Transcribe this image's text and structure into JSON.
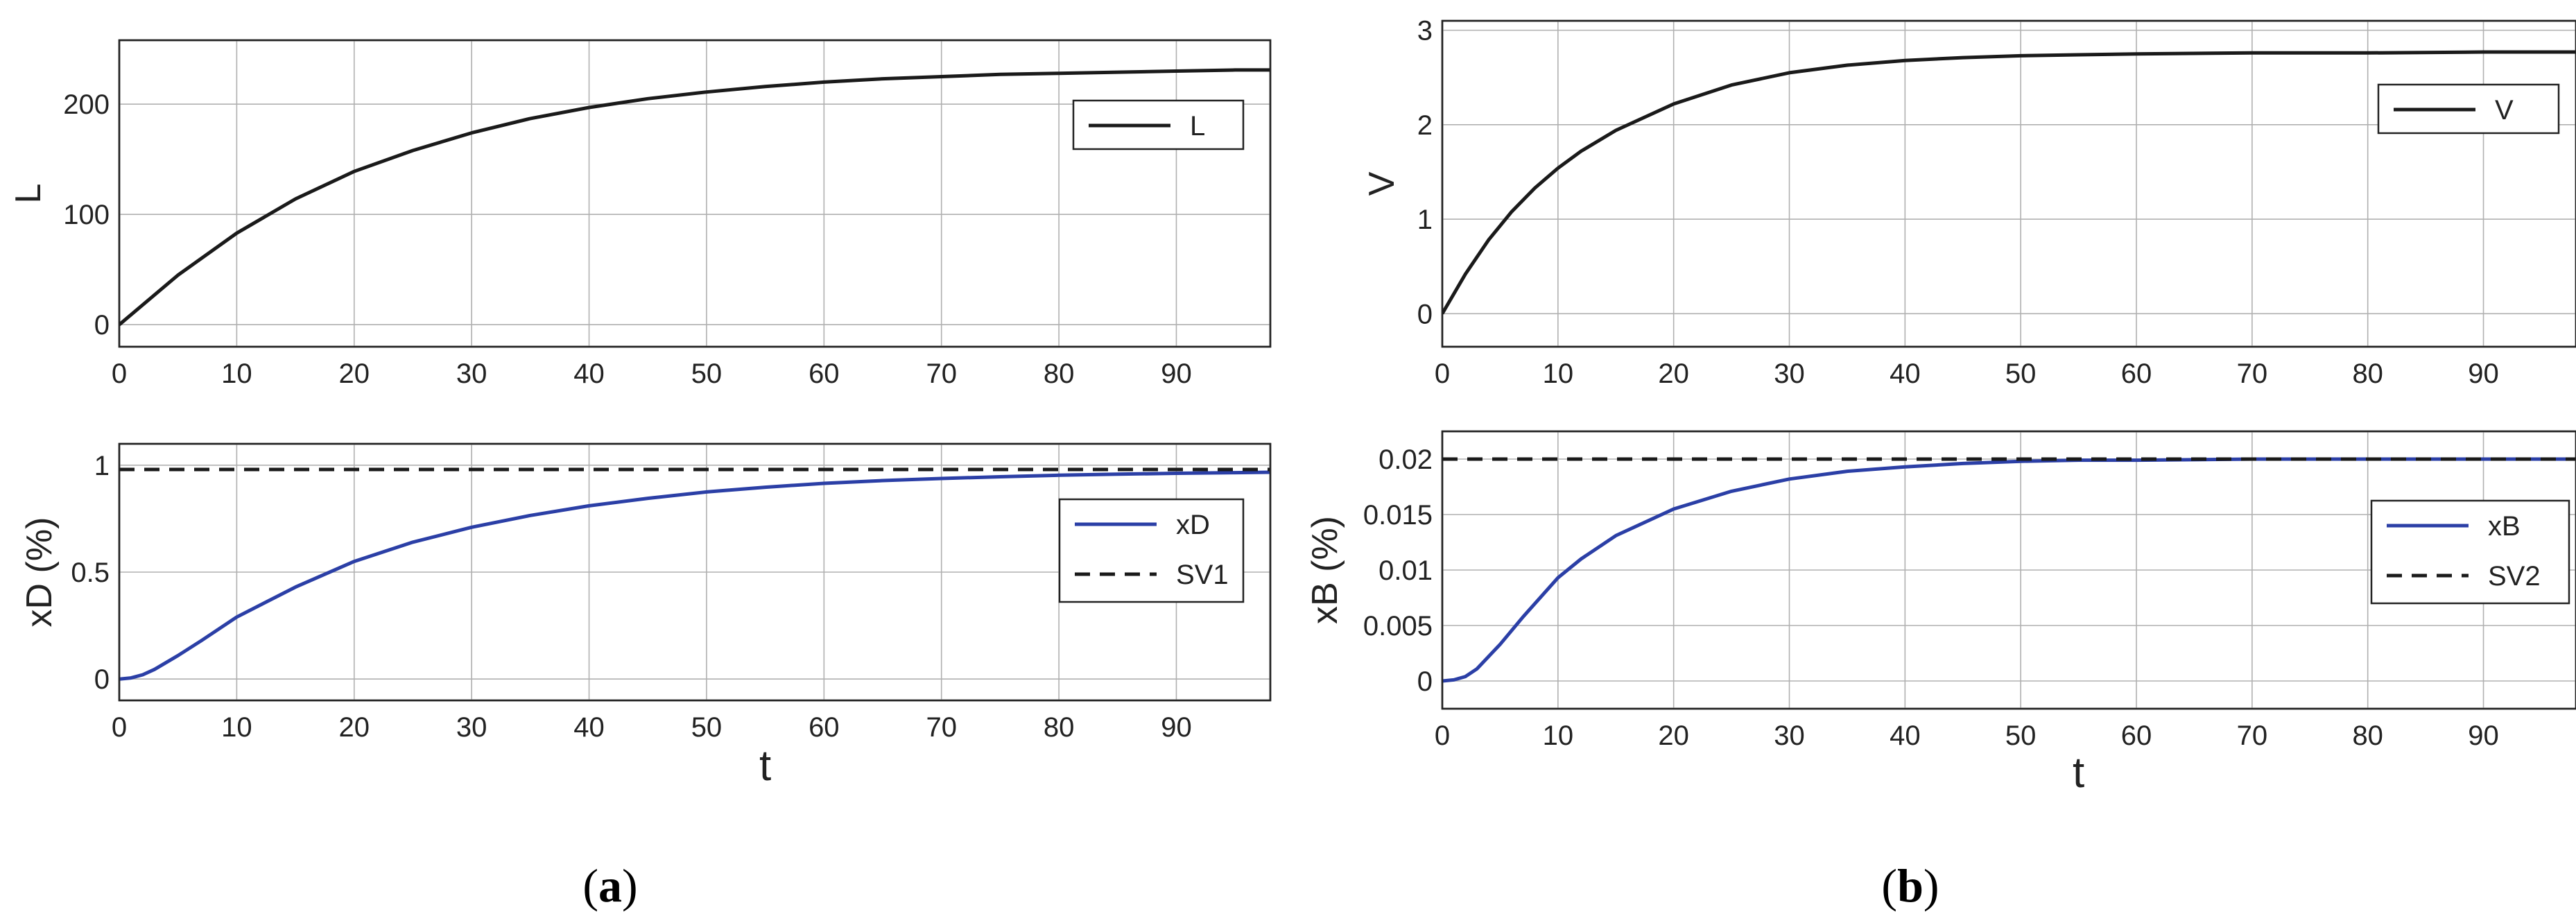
{
  "figure": {
    "panel_labels": [
      "a",
      "b"
    ]
  },
  "colors": {
    "black_series": "#1a1a1a",
    "blue_series": "#2b3fa6",
    "grid": "#b0b0b0",
    "axes": "#222222"
  },
  "chart_data": [
    {
      "id": "a-top",
      "type": "line",
      "ylabel": "L",
      "xlabel": "",
      "xlim": [
        0,
        98
      ],
      "ylim": [
        -20,
        258
      ],
      "xticks": [
        0,
        10,
        20,
        30,
        40,
        50,
        60,
        70,
        80,
        90
      ],
      "yticks": [
        0,
        100,
        200
      ],
      "grid": true,
      "legend_position": "upper-right",
      "series": [
        {
          "name": "L",
          "style": "solid",
          "color": "#1a1a1a",
          "x": [
            0,
            5,
            10,
            15,
            20,
            25,
            30,
            35,
            40,
            45,
            50,
            55,
            60,
            65,
            70,
            75,
            80,
            85,
            90,
            95,
            98
          ],
          "y": [
            0,
            45,
            83,
            114,
            139,
            158,
            174,
            187,
            197,
            205,
            211,
            216,
            220,
            223,
            225,
            227,
            228,
            229,
            230,
            231,
            231
          ]
        }
      ]
    },
    {
      "id": "a-bottom",
      "type": "line",
      "ylabel": "xD (%)",
      "xlabel": "t",
      "xlim": [
        0,
        98
      ],
      "ylim": [
        -0.1,
        1.1
      ],
      "xticks": [
        0,
        10,
        20,
        30,
        40,
        50,
        60,
        70,
        80,
        90
      ],
      "yticks": [
        0,
        0.5,
        1
      ],
      "grid": true,
      "legend_position": "right",
      "series": [
        {
          "name": "xD",
          "style": "solid",
          "color": "#2b3fa6",
          "x": [
            0,
            1,
            2,
            3,
            5,
            7,
            10,
            15,
            20,
            25,
            30,
            35,
            40,
            45,
            50,
            55,
            60,
            65,
            70,
            75,
            80,
            85,
            90,
            95,
            98
          ],
          "y": [
            0,
            0.005,
            0.02,
            0.045,
            0.11,
            0.18,
            0.29,
            0.43,
            0.55,
            0.64,
            0.71,
            0.765,
            0.81,
            0.845,
            0.875,
            0.897,
            0.915,
            0.928,
            0.938,
            0.946,
            0.953,
            0.958,
            0.962,
            0.965,
            0.967
          ]
        },
        {
          "name": "SV1",
          "style": "dashed",
          "color": "#1a1a1a",
          "x": [
            0,
            98
          ],
          "y": [
            0.98,
            0.98
          ]
        }
      ]
    },
    {
      "id": "b-top",
      "type": "line",
      "ylabel": "V",
      "xlabel": "",
      "xlim": [
        0,
        98
      ],
      "ylim": [
        -0.35,
        3.1
      ],
      "xticks": [
        0,
        10,
        20,
        30,
        40,
        50,
        60,
        70,
        80,
        90
      ],
      "yticks": [
        0,
        1,
        2,
        3
      ],
      "grid": true,
      "legend_position": "upper-right",
      "series": [
        {
          "name": "V",
          "style": "solid",
          "color": "#1a1a1a",
          "x": [
            0,
            2,
            4,
            6,
            8,
            10,
            12,
            15,
            20,
            25,
            30,
            35,
            40,
            45,
            50,
            55,
            60,
            70,
            80,
            90,
            98
          ],
          "y": [
            0,
            0.42,
            0.78,
            1.08,
            1.33,
            1.54,
            1.72,
            1.94,
            2.22,
            2.42,
            2.55,
            2.63,
            2.68,
            2.71,
            2.73,
            2.74,
            2.75,
            2.76,
            2.76,
            2.77,
            2.77
          ]
        }
      ]
    },
    {
      "id": "b-bottom",
      "type": "line",
      "ylabel": "xB (%)",
      "xlabel": "t",
      "xlim": [
        0,
        98
      ],
      "ylim": [
        -0.0025,
        0.0225
      ],
      "xticks": [
        0,
        10,
        20,
        30,
        40,
        50,
        60,
        70,
        80,
        90
      ],
      "yticks": [
        0,
        0.005,
        0.01,
        0.015,
        0.02
      ],
      "ytick_labels": [
        "0",
        "0.005",
        "0.01",
        "0.015",
        "0.02"
      ],
      "grid": true,
      "legend_position": "right",
      "series": [
        {
          "name": "xB",
          "style": "solid",
          "color": "#2b3fa6",
          "x": [
            0,
            1,
            2,
            3,
            5,
            7,
            10,
            12,
            15,
            20,
            25,
            30,
            35,
            40,
            45,
            50,
            55,
            60,
            70,
            80,
            90,
            98
          ],
          "y": [
            0,
            0.0001,
            0.0004,
            0.0011,
            0.0033,
            0.0058,
            0.0093,
            0.011,
            0.0131,
            0.0155,
            0.0171,
            0.0182,
            0.0189,
            0.0193,
            0.0196,
            0.0198,
            0.0199,
            0.0199,
            0.02,
            0.02,
            0.02,
            0.02
          ]
        },
        {
          "name": "SV2",
          "style": "dashed",
          "color": "#1a1a1a",
          "x": [
            0,
            98
          ],
          "y": [
            0.02,
            0.02
          ]
        }
      ]
    }
  ]
}
